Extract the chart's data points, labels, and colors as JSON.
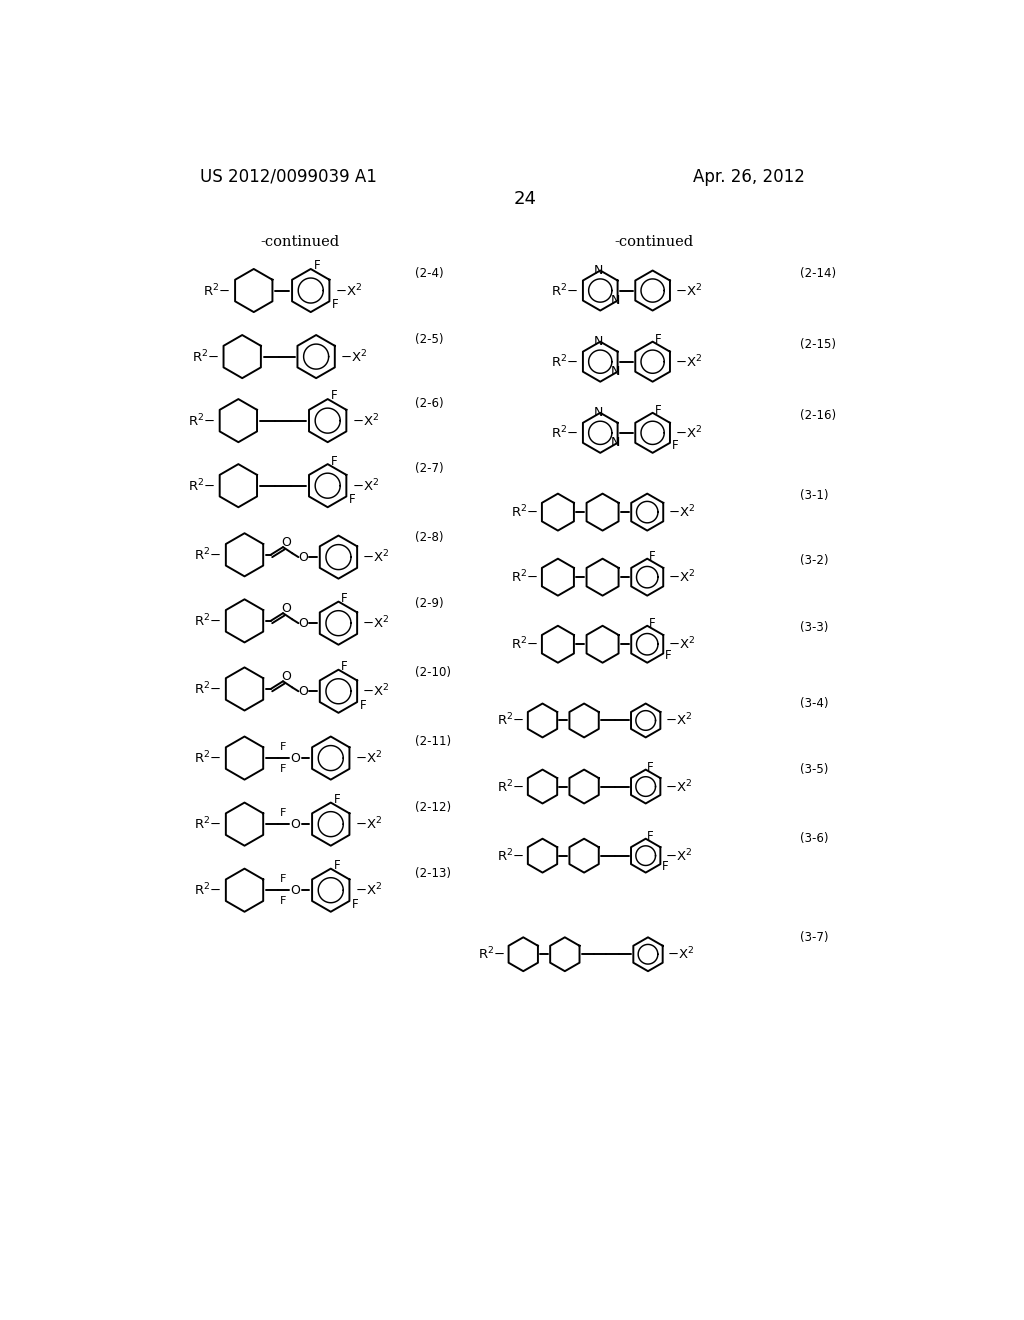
{
  "page_number": "24",
  "patent_number": "US 2012/0099039 A1",
  "patent_date": "Apr. 26, 2012",
  "background_color": "#ffffff",
  "text_color": "#000000",
  "left_continued_label": "-continued",
  "right_continued_label": "-continued"
}
